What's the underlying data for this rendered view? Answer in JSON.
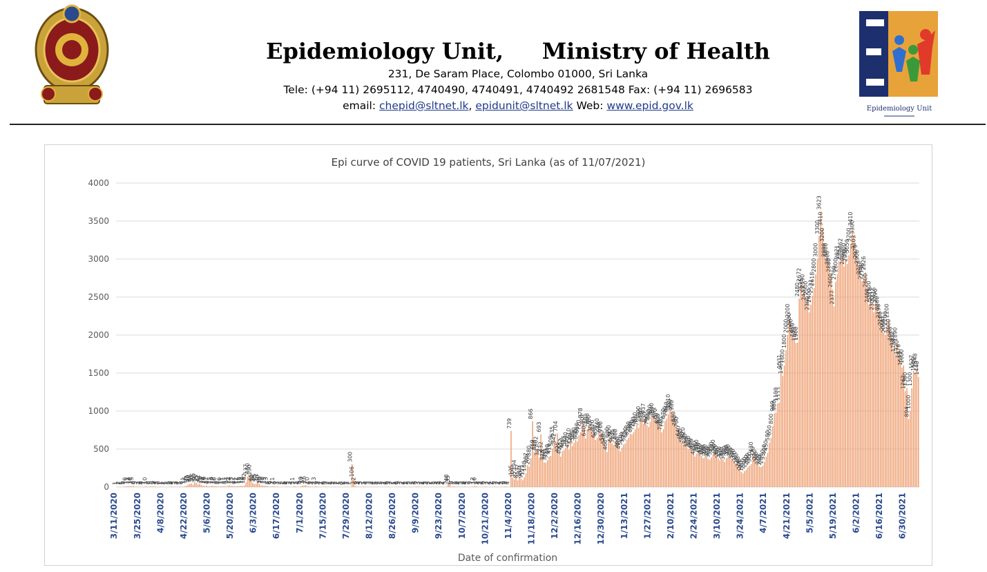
{
  "header": {
    "title": "Epidemiology Unit,     Ministry of Health",
    "address": "231, De Saram Place, Colombo 01000, Sri Lanka",
    "tele": "Tele: (+94 11) 2695112, 4740490, 4740491, 4740492 2681548  Fax: (+94 11) 2696583",
    "email_label": "email: ",
    "email1": "chepid@sltnet.lk",
    "email2": "epidunit@sltnet.lk",
    "web_label": " Web: ",
    "web": "www.epid.gov.lk",
    "logo_right_caption": "Epidemiology Unit"
  },
  "colors": {
    "bar": "#ed9a6a",
    "bar_dark": "#e07b3c",
    "tick_label": "#2b4a8e",
    "axis_text": "#595959",
    "grid": "#d9d9d9",
    "brand_blue": "#1e2f6e",
    "brand_orange": "#e8652c"
  },
  "chart_data": {
    "type": "bar",
    "title": "Epi curve of COVID 19 patients, Sri Lanka  (as of 11/07/2021)",
    "xlabel": "Date of confirmation",
    "ylabel": "",
    "ylim": [
      0,
      4000
    ],
    "yticks": [
      0,
      500,
      1000,
      1500,
      2000,
      2500,
      3000,
      3500,
      4000
    ],
    "grid": true,
    "legend": "none",
    "x_tick_labels": [
      "3/11/2020",
      "3/25/2020",
      "4/8/2020",
      "4/22/2020",
      "5/6/2020",
      "5/20/2020",
      "6/3/2020",
      "6/17/2020",
      "7/1/2020",
      "7/15/2020",
      "7/29/2020",
      "8/12/2020",
      "8/26/2020",
      "9/9/2020",
      "9/23/2020",
      "10/7/2020",
      "10/21/2020",
      "11/4/2020",
      "11/18/2020",
      "12/2/2020",
      "12/16/2020",
      "12/30/2020",
      "1/13/2021",
      "1/27/2021",
      "2/10/2021",
      "2/24/2021",
      "3/10/2021",
      "3/24/2021",
      "4/7/2021",
      "4/21/2021",
      "5/5/2021",
      "5/19/2021",
      "6/2/2021",
      "6/16/2021",
      "6/30/2021"
    ],
    "series": [
      {
        "points_per_tick": 14,
        "first_date": "3/11/2020",
        "last_date": "7/11/2021",
        "daily_counts": [
          1,
          1,
          2,
          1,
          5,
          8,
          10,
          11,
          14,
          10,
          15,
          6,
          5,
          7,
          3,
          6,
          4,
          7,
          10,
          3,
          8,
          5,
          8,
          9,
          4,
          3,
          6,
          1,
          1,
          2,
          1,
          2,
          3,
          8,
          4,
          5,
          3,
          4,
          7,
          5,
          6,
          11,
          16,
          33,
          40,
          46,
          30,
          65,
          50,
          35,
          42,
          28,
          18,
          14,
          19,
          11,
          9,
          15,
          16,
          12,
          10,
          9,
          8,
          10,
          11,
          11,
          8,
          14,
          21,
          14,
          13,
          12,
          9,
          12,
          11,
          18,
          12,
          19,
          62,
          137,
          150,
          130,
          55,
          38,
          45,
          62,
          40,
          18,
          20,
          16,
          15,
          13,
          5,
          6,
          9,
          11,
          6,
          7,
          3,
          2,
          3,
          1,
          6,
          4,
          5,
          3,
          4,
          11,
          7,
          5,
          4,
          8,
          20,
          17,
          26,
          7,
          10,
          6,
          5,
          4,
          13,
          6,
          3,
          4,
          2,
          4,
          6,
          3,
          2,
          2,
          4,
          2,
          3,
          1,
          2,
          1,
          3,
          0,
          4,
          1,
          2,
          2,
          300,
          106,
          12,
          6,
          5,
          4,
          3,
          7,
          5,
          4,
          3,
          3,
          3,
          4,
          2,
          5,
          4,
          2,
          3,
          1,
          2,
          4,
          6,
          3,
          3,
          2,
          1,
          4,
          6,
          5,
          3,
          2,
          4,
          1,
          3,
          5,
          2,
          3,
          4,
          6,
          7,
          3,
          2,
          2,
          4,
          5,
          4,
          3,
          2,
          1,
          3,
          5,
          4,
          3,
          6,
          2,
          4,
          5,
          48,
          35,
          6,
          8,
          7,
          5,
          6,
          4,
          5,
          3,
          6,
          4,
          5,
          3,
          5,
          7,
          12,
          10,
          5,
          4,
          3,
          4,
          6,
          7,
          3,
          2,
          4,
          2,
          6,
          5,
          3,
          2,
          4,
          3,
          6,
          8,
          4,
          4,
          739,
          125,
          101,
          194,
          87,
          132,
          110,
          90,
          127,
          180,
          287,
          268,
          380,
          866,
          459,
          456,
          502,
          387,
          693,
          432,
          325,
          320,
          351,
          400,
          410,
          509,
          635,
          542,
          704,
          425,
          400,
          472,
          487,
          515,
          560,
          490,
          610,
          540,
          580,
          620,
          600,
          680,
          720,
          878,
          802,
          640,
          760,
          808,
          780,
          700,
          720,
          620,
          650,
          740,
          690,
          700,
          580,
          540,
          460,
          620,
          650,
          574,
          553,
          599,
          600,
          490,
          470,
          520,
          560,
          575,
          620,
          650,
          700,
          690,
          720,
          760,
          820,
          780,
          900,
          870,
          830,
          937,
          820,
          790,
          860,
          920,
          940,
          892,
          870,
          810,
          800,
          720,
          760,
          870,
          900,
          960,
          1010,
          990,
          980,
          830,
          780,
          760,
          640,
          600,
          560,
          620,
          540,
          500,
          510,
          480,
          470,
          400,
          440,
          460,
          420,
          410,
          380,
          390,
          400,
          370,
          360,
          390,
          430,
          460,
          400,
          380,
          350,
          370,
          360,
          330,
          380,
          390,
          400,
          370,
          350,
          340,
          310,
          280,
          240,
          200,
          180,
          210,
          230,
          260,
          280,
          300,
          430,
          370,
          330,
          300,
          270,
          260,
          280,
          330,
          400,
          450,
          580,
          650,
          800,
          969,
          980,
          1100,
          1111,
          1531,
          1461,
          1600,
          1800,
          2000,
          2200,
          2080,
          2000,
          1950,
          1895,
          1900,
          2480,
          2672,
          2535,
          2590,
          2427,
          2500,
          2300,
          2400,
          2521,
          2618,
          2800,
          3000,
          3300,
          3623,
          3410,
          3200,
          2999,
          3000,
          2900,
          2800,
          2600,
          2377,
          2700,
          2800,
          2971,
          2962,
          3062,
          2900,
          3000,
          2936,
          3050,
          3200,
          3410,
          3300,
          3103,
          2979,
          2908,
          2770,
          2706,
          2738,
          2826,
          2600,
          2400,
          2500,
          2416,
          2300,
          2416,
          2396,
          2300,
          2196,
          2100,
          2033,
          2000,
          2100,
          2200,
          2000,
          1900,
          1832,
          1750,
          1890,
          1720,
          1670,
          1573,
          1600,
          1262,
          1300,
          894,
          1000,
          1300,
          1527,
          1500,
          1548,
          1448
        ]
      }
    ]
  }
}
